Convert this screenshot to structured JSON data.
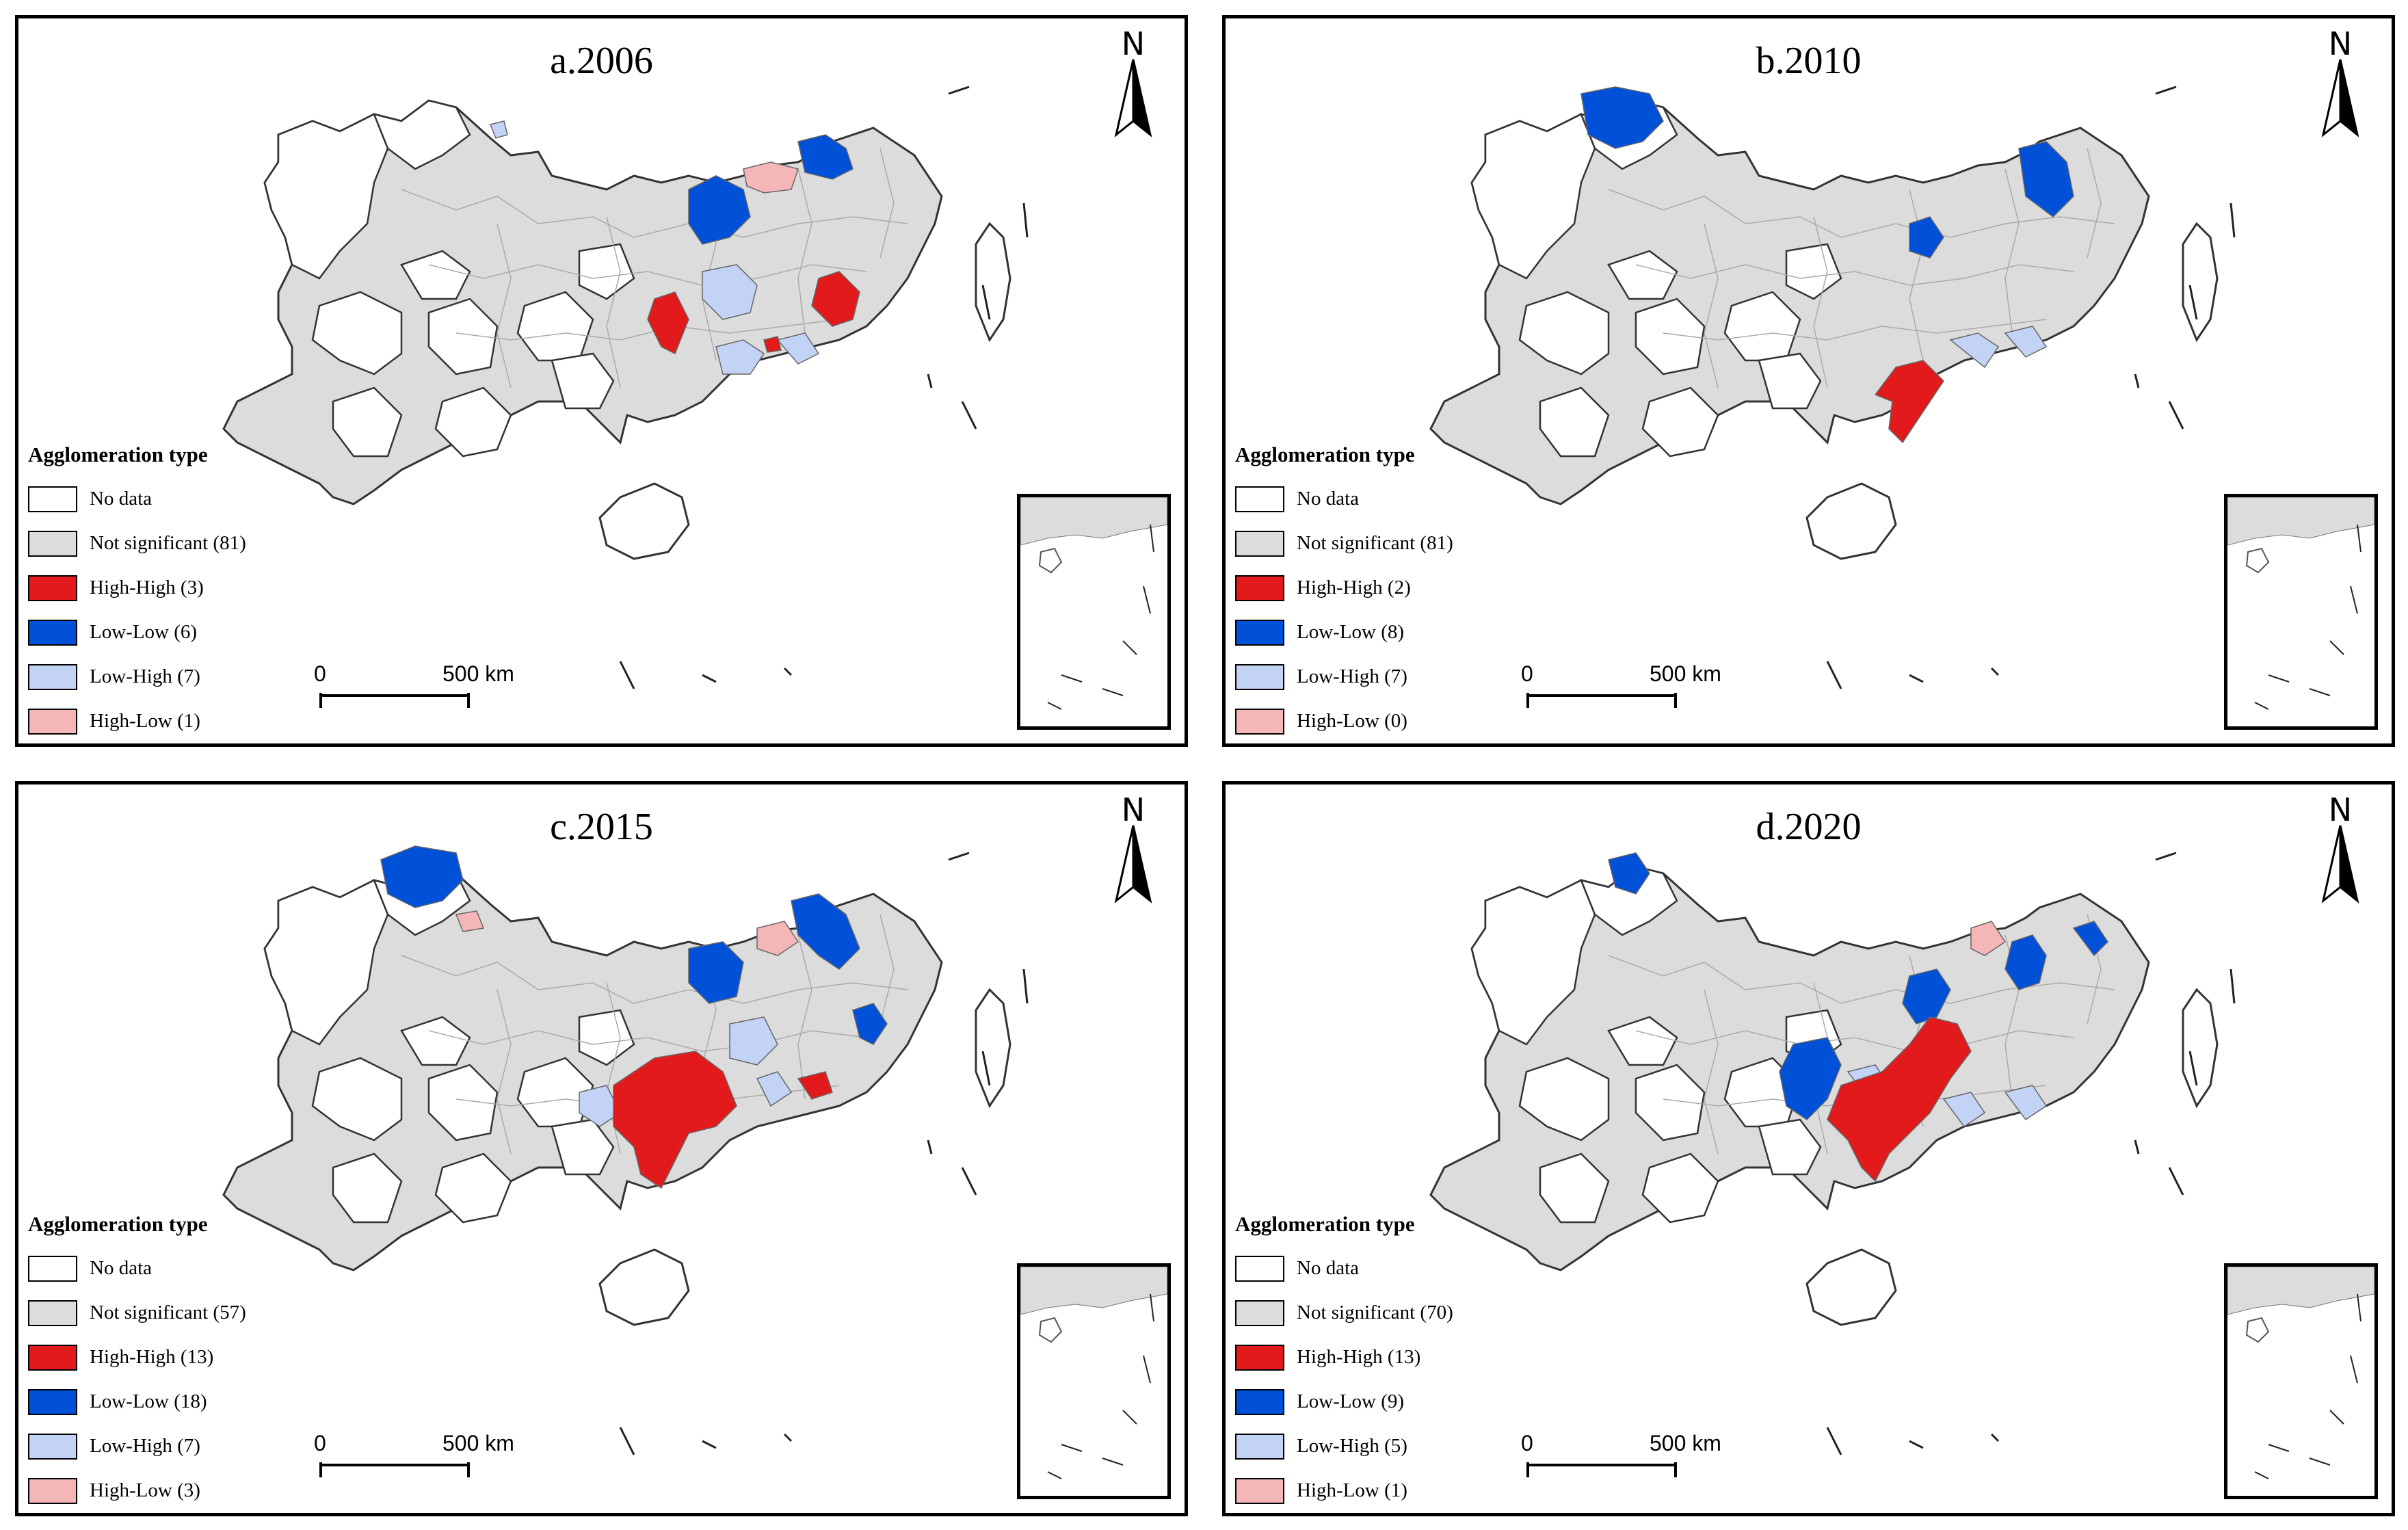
{
  "colors": {
    "no_data": "#ffffff",
    "not_significant": "#dcdcdc",
    "high_high": "#e31a1c",
    "low_low": "#0050d8",
    "low_high": "#c3d3f5",
    "high_low": "#f5b6b8",
    "border": "#555555"
  },
  "legend_title": "Agglomeration type",
  "north_label": "N",
  "scale": {
    "start": "0",
    "end": "500 km"
  },
  "panels": [
    {
      "title": "a.2006",
      "legend": [
        {
          "key": "no_data",
          "label": "No data"
        },
        {
          "key": "not_significant",
          "label": "Not significant (81)"
        },
        {
          "key": "high_high",
          "label": "High-High (3)"
        },
        {
          "key": "low_low",
          "label": "Low-Low (6)"
        },
        {
          "key": "low_high",
          "label": "Low-High (7)"
        },
        {
          "key": "high_low",
          "label": "High-Low (1)"
        }
      ]
    },
    {
      "title": "b.2010",
      "legend": [
        {
          "key": "no_data",
          "label": "No data"
        },
        {
          "key": "not_significant",
          "label": "Not significant (81)"
        },
        {
          "key": "high_high",
          "label": "High-High (2)"
        },
        {
          "key": "low_low",
          "label": "Low-Low (8)"
        },
        {
          "key": "low_high",
          "label": "Low-High (7)"
        },
        {
          "key": "high_low",
          "label": "High-Low (0)"
        }
      ]
    },
    {
      "title": "c.2015",
      "legend": [
        {
          "key": "no_data",
          "label": "No data"
        },
        {
          "key": "not_significant",
          "label": "Not significant (57)"
        },
        {
          "key": "high_high",
          "label": "High-High (13)"
        },
        {
          "key": "low_low",
          "label": "Low-Low (18)"
        },
        {
          "key": "low_high",
          "label": "Low-High (7)"
        },
        {
          "key": "high_low",
          "label": "High-Low (3)"
        }
      ]
    },
    {
      "title": "d.2020",
      "legend": [
        {
          "key": "no_data",
          "label": "No data"
        },
        {
          "key": "not_significant",
          "label": "Not significant (70)"
        },
        {
          "key": "high_high",
          "label": "High-High (13)"
        },
        {
          "key": "low_low",
          "label": "Low-Low (9)"
        },
        {
          "key": "low_high",
          "label": "Low-High (5)"
        },
        {
          "key": "high_low",
          "label": "High-Low (1)"
        }
      ]
    }
  ]
}
